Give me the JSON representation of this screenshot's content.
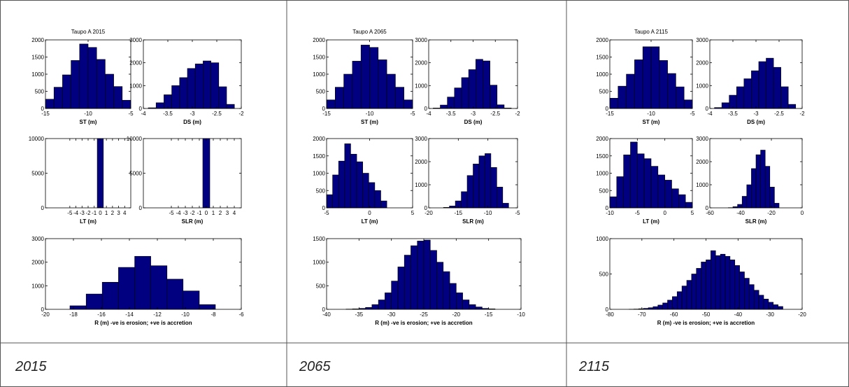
{
  "chart_data": [
    {
      "type": "histogram",
      "title": "Taupo A 2015",
      "xlabel": "ST (m)",
      "bins": [
        -15,
        -14,
        -13,
        -12,
        -11,
        -10,
        -9,
        -8,
        -7,
        -6,
        -5
      ],
      "values": [
        270,
        620,
        980,
        1400,
        1880,
        1780,
        1430,
        1000,
        640,
        240
      ],
      "xlim": [
        -15,
        -5
      ],
      "xticks": [
        -15,
        -10,
        -5
      ],
      "ylim": [
        0,
        2000
      ],
      "yticks": [
        0,
        500,
        1000,
        1500,
        2000
      ],
      "color": "#000080"
    },
    {
      "type": "histogram",
      "xlabel": "DS (m)",
      "bins": [
        -3.9,
        -3.74,
        -3.58,
        -3.42,
        -3.26,
        -3.1,
        -2.94,
        -2.78,
        -2.62,
        -2.46,
        -2.3,
        -2.14
      ],
      "values": [
        30,
        250,
        600,
        1000,
        1350,
        1750,
        1950,
        2080,
        2000,
        950,
        180
      ],
      "xlim": [
        -4,
        -2
      ],
      "xticks": [
        -4,
        -3.5,
        -3,
        -2.5,
        -2
      ],
      "ylim": [
        0,
        3000
      ],
      "yticks": [
        0,
        1000,
        2000,
        3000
      ],
      "color": "#000080"
    },
    {
      "type": "histogram",
      "xlabel": "LT (m)",
      "bins": [
        -0.5,
        0.5
      ],
      "values": [
        10000
      ],
      "xlim": [
        -9,
        5
      ],
      "xticks": [
        -5,
        -4,
        -3,
        -2,
        -1,
        0,
        1,
        2,
        3,
        4
      ],
      "ylim": [
        0,
        10000
      ],
      "yticks": [
        0,
        5000,
        10000
      ],
      "color": "#000080"
    },
    {
      "type": "histogram",
      "xlabel": "SLR (m)",
      "bins": [
        -0.5,
        0.5
      ],
      "values": [
        10000
      ],
      "xlim": [
        -9,
        5
      ],
      "xticks": [
        -5,
        -4,
        -3,
        -2,
        -1,
        0,
        1,
        2,
        3,
        4
      ],
      "ylim": [
        0,
        10000
      ],
      "yticks": [
        0,
        5000,
        10000
      ],
      "color": "#000080"
    },
    {
      "type": "histogram",
      "xlabel": "R (m) -ve is erosion; +ve is accretion",
      "bins": [
        -18.25,
        -17.09,
        -15.94,
        -14.78,
        -13.62,
        -12.47,
        -11.31,
        -10.16,
        -9.0,
        -7.85
      ],
      "values": [
        150,
        650,
        1150,
        1780,
        2250,
        1850,
        1280,
        780,
        200
      ],
      "xlim": [
        -20,
        -6
      ],
      "xticks": [
        -20,
        -18,
        -16,
        -14,
        -12,
        -10,
        -8,
        -6
      ],
      "ylim": [
        0,
        3000
      ],
      "yticks": [
        0,
        1000,
        2000,
        3000
      ],
      "color": "#000080"
    },
    {
      "type": "histogram",
      "title": "Taupo A 2065",
      "xlabel": "ST (m)",
      "bins": [
        -15,
        -14,
        -13,
        -12,
        -11,
        -10,
        -9,
        -8,
        -7,
        -6,
        -5
      ],
      "values": [
        250,
        620,
        1000,
        1380,
        1850,
        1780,
        1420,
        1000,
        620,
        250
      ],
      "xlim": [
        -15,
        -5
      ],
      "xticks": [
        -15,
        -10,
        -5
      ],
      "ylim": [
        0,
        2000
      ],
      "yticks": [
        0,
        500,
        1000,
        1500,
        2000
      ],
      "color": "#000080"
    },
    {
      "type": "histogram",
      "xlabel": "DS (m)",
      "bins": [
        -3.9,
        -3.74,
        -3.58,
        -3.42,
        -3.26,
        -3.1,
        -2.94,
        -2.78,
        -2.62,
        -2.46,
        -2.3,
        -2.14
      ],
      "values": [
        20,
        150,
        500,
        900,
        1350,
        1700,
        2150,
        2080,
        1020,
        160,
        20
      ],
      "xlim": [
        -4,
        -2
      ],
      "xticks": [
        -4,
        -3.5,
        -3,
        -2.5,
        -2
      ],
      "ylim": [
        0,
        3000
      ],
      "yticks": [
        0,
        1000,
        2000,
        3000
      ],
      "color": "#000080"
    },
    {
      "type": "histogram",
      "xlabel": "LT (m)",
      "bins": [
        -5,
        -4.3,
        -3.6,
        -2.9,
        -2.2,
        -1.5,
        -0.8,
        -0.1,
        0.6,
        1.3,
        2.0
      ],
      "values": [
        380,
        950,
        1350,
        1850,
        1550,
        1330,
        1000,
        730,
        500,
        200
      ],
      "xlim": [
        -5,
        5
      ],
      "xticks": [
        -5,
        0,
        5
      ],
      "ylim": [
        0,
        2000
      ],
      "yticks": [
        0,
        500,
        1000,
        1500,
        2000
      ],
      "color": "#000080"
    },
    {
      "type": "histogram",
      "xlabel": "SLR (m)",
      "bins": [
        -17.5,
        -16.5,
        -15.5,
        -14.5,
        -13.5,
        -12.5,
        -11.5,
        -10.5,
        -9.5,
        -8.5,
        -7.5,
        -6.5
      ],
      "values": [
        20,
        80,
        300,
        700,
        1400,
        1900,
        2250,
        2350,
        1750,
        900,
        200
      ],
      "xlim": [
        -20,
        -5
      ],
      "xticks": [
        -20,
        -15,
        -10,
        -5
      ],
      "ylim": [
        0,
        3000
      ],
      "yticks": [
        0,
        1000,
        2000,
        3000
      ],
      "color": "#000080"
    },
    {
      "type": "histogram",
      "xlabel": "R (m) -ve is erosion; +ve is accretion",
      "bins": [
        -37,
        -36,
        -35,
        -34,
        -33,
        -32,
        -31,
        -30,
        -29,
        -28,
        -27,
        -26,
        -25,
        -24,
        -23,
        -22,
        -21,
        -20,
        -19,
        -18,
        -17,
        -16,
        -15,
        -14
      ],
      "values": [
        5,
        10,
        20,
        40,
        100,
        200,
        350,
        600,
        900,
        1150,
        1350,
        1450,
        1470,
        1250,
        1000,
        800,
        550,
        350,
        200,
        100,
        50,
        20,
        10
      ],
      "xlim": [
        -40,
        -10
      ],
      "xticks": [
        -40,
        -35,
        -30,
        -25,
        -20,
        -15,
        -10
      ],
      "ylim": [
        0,
        1500
      ],
      "yticks": [
        0,
        500,
        1000,
        1500
      ],
      "color": "#000080"
    },
    {
      "type": "histogram",
      "title": "Taupo A 2115",
      "xlabel": "ST (m)",
      "bins": [
        -15,
        -14,
        -13,
        -12,
        -11,
        -10,
        -9,
        -8,
        -7,
        -6,
        -5
      ],
      "values": [
        300,
        650,
        1000,
        1420,
        1800,
        1800,
        1400,
        1020,
        630,
        250
      ],
      "xlim": [
        -15,
        -5
      ],
      "xticks": [
        -15,
        -10,
        -5
      ],
      "ylim": [
        0,
        2000
      ],
      "yticks": [
        0,
        500,
        1000,
        1500,
        2000
      ],
      "color": "#000080"
    },
    {
      "type": "histogram",
      "xlabel": "DS (m)",
      "bins": [
        -3.9,
        -3.74,
        -3.58,
        -3.42,
        -3.26,
        -3.1,
        -2.94,
        -2.78,
        -2.62,
        -2.46,
        -2.3,
        -2.14
      ],
      "values": [
        40,
        250,
        580,
        950,
        1300,
        1650,
        2050,
        2200,
        1800,
        950,
        180
      ],
      "xlim": [
        -4,
        -2
      ],
      "xticks": [
        -4,
        -3.5,
        -3,
        -2.5,
        -2
      ],
      "ylim": [
        0,
        3000
      ],
      "yticks": [
        0,
        1000,
        2000,
        3000
      ],
      "color": "#000080"
    },
    {
      "type": "histogram",
      "xlabel": "LT (m)",
      "bins": [
        -10,
        -8.75,
        -7.5,
        -6.25,
        -5,
        -3.75,
        -2.5,
        -1.25,
        0,
        1.25,
        2.5,
        3.75,
        5
      ],
      "values": [
        320,
        900,
        1530,
        1900,
        1560,
        1420,
        1200,
        950,
        800,
        550,
        380,
        160
      ],
      "xlim": [
        -10,
        5
      ],
      "xticks": [
        -10,
        -5,
        0,
        5
      ],
      "ylim": [
        0,
        2000
      ],
      "yticks": [
        0,
        500,
        1000,
        1500,
        2000
      ],
      "color": "#000080"
    },
    {
      "type": "histogram",
      "xlabel": "SLR (m)",
      "bins": [
        -48,
        -45,
        -42,
        -39,
        -36,
        -33,
        -30,
        -27,
        -24,
        -21,
        -18,
        -15
      ],
      "values": [
        10,
        50,
        150,
        500,
        1000,
        1700,
        2300,
        2500,
        1800,
        900,
        200
      ],
      "xlim": [
        -60,
        0
      ],
      "xticks": [
        -60,
        -40,
        -20,
        0
      ],
      "ylim": [
        0,
        3000
      ],
      "yticks": [
        0,
        1000,
        2000,
        3000
      ],
      "color": "#000080"
    },
    {
      "type": "histogram",
      "xlabel": "R (m) -ve is erosion; +ve is accretion",
      "bins": [
        -74,
        -72.5,
        -71,
        -69.5,
        -68,
        -66.5,
        -65,
        -63.5,
        -62,
        -60.5,
        -59,
        -57.5,
        -56,
        -54.5,
        -53,
        -51.5,
        -50,
        -48.5,
        -47,
        -45.5,
        -44,
        -42.5,
        -41,
        -39.5,
        -38,
        -36.5,
        -35,
        -33.5,
        -32,
        -30.5,
        -29,
        -27.5,
        -26
      ],
      "values": [
        2,
        4,
        8,
        14,
        23,
        38,
        60,
        90,
        130,
        180,
        250,
        330,
        410,
        500,
        580,
        670,
        700,
        830,
        760,
        780,
        750,
        700,
        620,
        530,
        440,
        350,
        270,
        200,
        145,
        100,
        65,
        40
      ],
      "xlim": [
        -80,
        -20
      ],
      "xticks": [
        -80,
        -70,
        -60,
        -50,
        -40,
        -30,
        -20
      ],
      "ylim": [
        0,
        1000
      ],
      "yticks": [
        0,
        500,
        1000
      ],
      "color": "#000080"
    }
  ],
  "captions": [
    "2015",
    "2065",
    "2115"
  ]
}
